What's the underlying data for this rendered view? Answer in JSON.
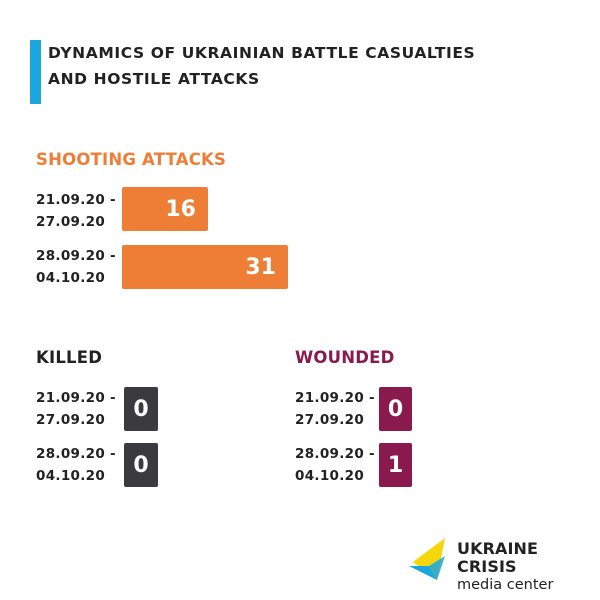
{
  "header": {
    "title_line1": "DYNAMICS OF UKRAINIAN BATTLE CASUALTIES",
    "title_line2": "AND HOSTILE ATTACKS"
  },
  "colors": {
    "accent_blue": "#1ba6de",
    "shooting_orange": "#ee7d36",
    "killed_dark": "#3a3a3f",
    "wounded_plum": "#8a1a4e"
  },
  "chart_data": [
    {
      "type": "bar",
      "title": "SHOOTING ATTACKS",
      "categories": [
        {
          "line1": "21.09.20 -",
          "line2": "27.09.20"
        },
        {
          "line1": "28.09.20 -",
          "line2": "04.10.20"
        }
      ],
      "values": [
        16,
        31
      ],
      "value_labels": [
        "16",
        "31"
      ]
    },
    {
      "type": "bar",
      "title": "KILLED",
      "categories": [
        {
          "line1": "21.09.20 -",
          "line2": "27.09.20"
        },
        {
          "line1": "28.09.20 -",
          "line2": "04.10.20"
        }
      ],
      "values": [
        0,
        0
      ],
      "value_labels": [
        "0",
        "0"
      ]
    },
    {
      "type": "bar",
      "title": "WOUNDED",
      "categories": [
        {
          "line1": "21.09.20 -",
          "line2": "27.09.20"
        },
        {
          "line1": "28.09.20 -",
          "line2": "04.10.20"
        }
      ],
      "values": [
        0,
        1
      ],
      "value_labels": [
        "0",
        "1"
      ]
    }
  ],
  "logo": {
    "icon": "ukraine-crisis-logo-icon",
    "line1": "UKRAINE CRISIS",
    "line2": "media center"
  }
}
